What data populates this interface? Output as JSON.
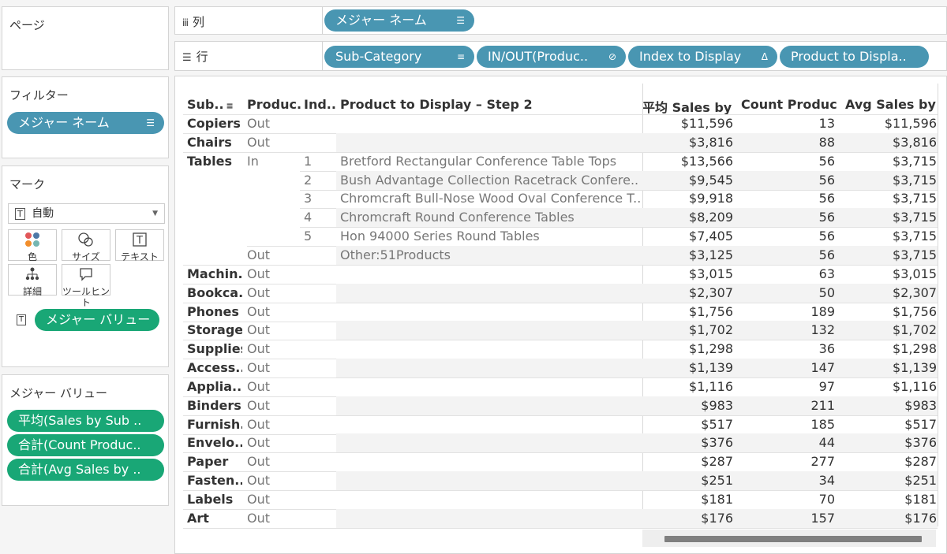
{
  "pages": {
    "title": "ページ"
  },
  "filters": {
    "title": "フィルター",
    "pill": "メジャー ネーム"
  },
  "marks": {
    "title": "マーク",
    "type": "自動",
    "buttons": {
      "color": "色",
      "size": "サイズ",
      "text": "テキスト",
      "detail": "詳細",
      "tooltip": "ツールヒント"
    },
    "text_pill": "メジャー バリュー"
  },
  "measure_values": {
    "title": "メジャー バリュー",
    "pills": [
      "平均(Sales by Sub ..",
      "合計(Count Produc..",
      "合計(Avg Sales by .."
    ]
  },
  "columns_shelf": {
    "label": "列",
    "pill": "メジャー ネーム"
  },
  "rows_shelf": {
    "label": "行",
    "pills": [
      "Sub-Category",
      "IN/OUT(Produc..",
      "Index to Display",
      "Product to Displa.."
    ]
  },
  "table": {
    "headers": [
      "Sub..",
      "Produc..",
      "Ind..",
      "Product to Display – Step 2",
      "平均 Sales by ..",
      "Count Produc..",
      "Avg Sales by .."
    ],
    "rows": [
      {
        "cat": "Copiers",
        "io": "Out",
        "idx": "",
        "prod": "",
        "v1": "$11,596",
        "v2": "13",
        "v3": "$11,596"
      },
      {
        "cat": "Chairs",
        "io": "Out",
        "idx": "",
        "prod": "",
        "v1": "$3,816",
        "v2": "88",
        "v3": "$3,816"
      },
      {
        "cat": "Tables",
        "io": "In",
        "idx": "1",
        "prod": "Bretford Rectangular Conference Table Tops",
        "v1": "$13,566",
        "v2": "56",
        "v3": "$3,715"
      },
      {
        "cat": "",
        "io": "",
        "idx": "2",
        "prod": "Bush Advantage Collection Racetrack Confere..",
        "v1": "$9,545",
        "v2": "56",
        "v3": "$3,715"
      },
      {
        "cat": "",
        "io": "",
        "idx": "3",
        "prod": "Chromcraft Bull-Nose Wood Oval Conference T..",
        "v1": "$9,918",
        "v2": "56",
        "v3": "$3,715"
      },
      {
        "cat": "",
        "io": "",
        "idx": "4",
        "prod": "Chromcraft Round Conference Tables",
        "v1": "$8,209",
        "v2": "56",
        "v3": "$3,715"
      },
      {
        "cat": "",
        "io": "",
        "idx": "5",
        "prod": "Hon 94000 Series Round Tables",
        "v1": "$7,405",
        "v2": "56",
        "v3": "$3,715"
      },
      {
        "cat": "",
        "io": "Out",
        "idx": "",
        "prod": "Other:51Products",
        "v1": "$3,125",
        "v2": "56",
        "v3": "$3,715"
      },
      {
        "cat": "Machin..",
        "io": "Out",
        "idx": "",
        "prod": "",
        "v1": "$3,015",
        "v2": "63",
        "v3": "$3,015"
      },
      {
        "cat": "Bookca..",
        "io": "Out",
        "idx": "",
        "prod": "",
        "v1": "$2,307",
        "v2": "50",
        "v3": "$2,307"
      },
      {
        "cat": "Phones",
        "io": "Out",
        "idx": "",
        "prod": "",
        "v1": "$1,756",
        "v2": "189",
        "v3": "$1,756"
      },
      {
        "cat": "Storage",
        "io": "Out",
        "idx": "",
        "prod": "",
        "v1": "$1,702",
        "v2": "132",
        "v3": "$1,702"
      },
      {
        "cat": "Supplies",
        "io": "Out",
        "idx": "",
        "prod": "",
        "v1": "$1,298",
        "v2": "36",
        "v3": "$1,298"
      },
      {
        "cat": "Access..",
        "io": "Out",
        "idx": "",
        "prod": "",
        "v1": "$1,139",
        "v2": "147",
        "v3": "$1,139"
      },
      {
        "cat": "Applia..",
        "io": "Out",
        "idx": "",
        "prod": "",
        "v1": "$1,116",
        "v2": "97",
        "v3": "$1,116"
      },
      {
        "cat": "Binders",
        "io": "Out",
        "idx": "",
        "prod": "",
        "v1": "$983",
        "v2": "211",
        "v3": "$983"
      },
      {
        "cat": "Furnish..",
        "io": "Out",
        "idx": "",
        "prod": "",
        "v1": "$517",
        "v2": "185",
        "v3": "$517"
      },
      {
        "cat": "Envelo..",
        "io": "Out",
        "idx": "",
        "prod": "",
        "v1": "$376",
        "v2": "44",
        "v3": "$376"
      },
      {
        "cat": "Paper",
        "io": "Out",
        "idx": "",
        "prod": "",
        "v1": "$287",
        "v2": "277",
        "v3": "$287"
      },
      {
        "cat": "Fasten..",
        "io": "Out",
        "idx": "",
        "prod": "",
        "v1": "$251",
        "v2": "34",
        "v3": "$251"
      },
      {
        "cat": "Labels",
        "io": "Out",
        "idx": "",
        "prod": "",
        "v1": "$181",
        "v2": "70",
        "v3": "$181"
      },
      {
        "cat": "Art",
        "io": "Out",
        "idx": "",
        "prod": "",
        "v1": "$176",
        "v2": "157",
        "v3": "$176"
      }
    ]
  }
}
